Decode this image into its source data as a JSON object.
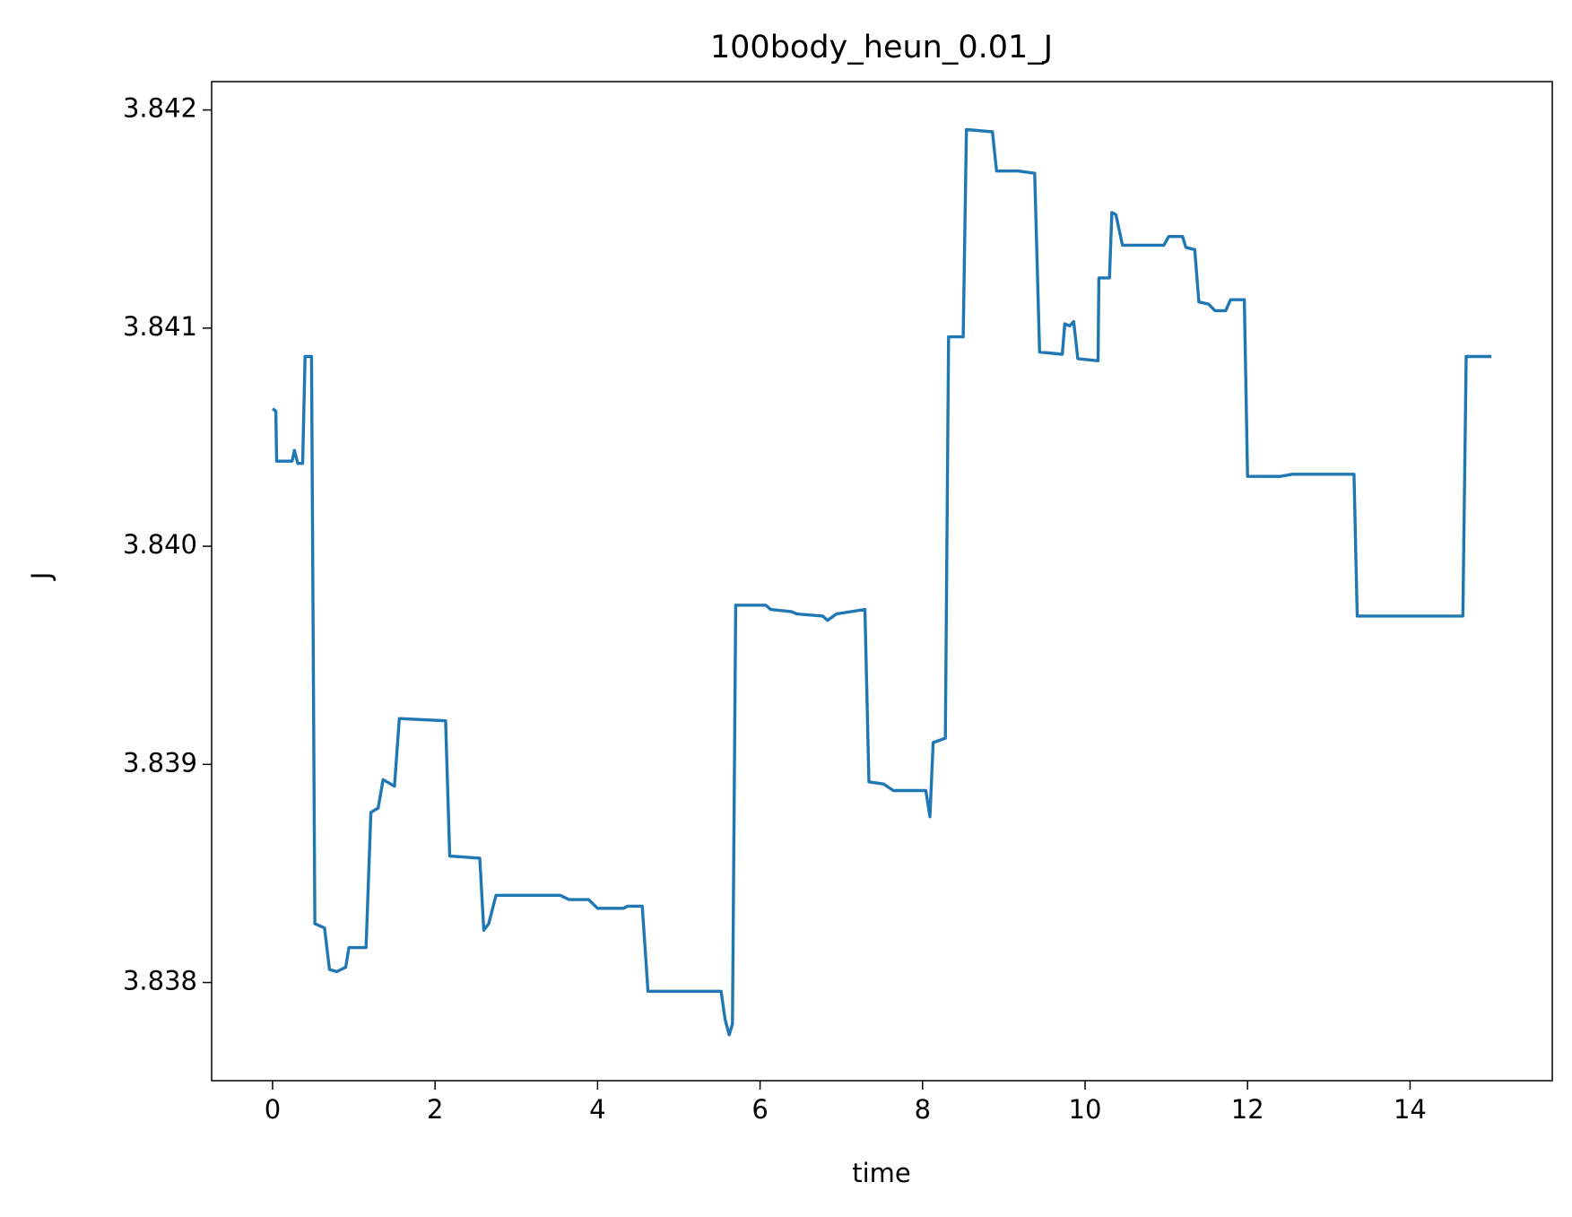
{
  "chart_data": {
    "type": "line",
    "title": "100body_heun_0.01_J",
    "x_label": "time",
    "y_label": "J",
    "xlim": [
      -0.75,
      15.75
    ],
    "ylim": [
      3.83755,
      3.84213
    ],
    "xticks": [
      0,
      2,
      4,
      6,
      8,
      10,
      12,
      14
    ],
    "yticks": [
      3.838,
      3.839,
      {
        "value": 3.84,
        "label": "3.840"
      },
      3.841,
      3.842
    ],
    "series": [
      {
        "name": "J",
        "color": "#1f77b4",
        "x": [
          0,
          0.04,
          0.05,
          0.24,
          0.27,
          0.31,
          0.37,
          0.4,
          0.48,
          0.52,
          0.64,
          0.7,
          0.79,
          0.9,
          0.94,
          1.15,
          1.21,
          1.3,
          1.36,
          1.5,
          1.56,
          2.13,
          2.18,
          2.55,
          2.6,
          2.66,
          2.75,
          3.54,
          3.65,
          3.89,
          4.0,
          4.32,
          4.37,
          4.55,
          4.62,
          5.01,
          5.52,
          5.57,
          5.62,
          5.66,
          5.7,
          6.07,
          6.13,
          6.39,
          6.45,
          6.77,
          6.83,
          6.94,
          7.29,
          7.34,
          7.52,
          7.64,
          8.04,
          8.09,
          8.13,
          8.28,
          8.32,
          8.5,
          8.54,
          8.86,
          8.91,
          9.18,
          9.38,
          9.44,
          9.72,
          9.75,
          9.81,
          9.86,
          9.91,
          10.16,
          10.17,
          10.3,
          10.33,
          10.38,
          10.46,
          10.97,
          11.03,
          11.2,
          11.24,
          11.35,
          11.4,
          11.52,
          11.6,
          11.73,
          11.79,
          11.96,
          12.0,
          12.4,
          12.55,
          13.31,
          13.35,
          14.4,
          14.65,
          14.69,
          15.0
        ],
        "values": [
          3.84063,
          3.84062,
          3.84039,
          3.84039,
          3.84044,
          3.84038,
          3.84038,
          3.84087,
          3.84087,
          3.83827,
          3.83825,
          3.83806,
          3.83805,
          3.83807,
          3.83816,
          3.83816,
          3.83878,
          3.8388,
          3.83893,
          3.8389,
          3.83921,
          3.8392,
          3.83858,
          3.83857,
          3.83824,
          3.83827,
          3.8384,
          3.8384,
          3.83838,
          3.83838,
          3.83834,
          3.83834,
          3.83835,
          3.83835,
          3.83796,
          3.83796,
          3.83796,
          3.83783,
          3.83776,
          3.83781,
          3.83973,
          3.83973,
          3.83971,
          3.8397,
          3.83969,
          3.83968,
          3.83966,
          3.83969,
          3.83971,
          3.83892,
          3.83891,
          3.83888,
          3.83888,
          3.83876,
          3.8391,
          3.83912,
          3.84096,
          3.84096,
          3.84191,
          3.8419,
          3.84172,
          3.84172,
          3.84171,
          3.84089,
          3.84088,
          3.84102,
          3.84101,
          3.84103,
          3.84086,
          3.84085,
          3.84123,
          3.84123,
          3.84153,
          3.84152,
          3.84138,
          3.84138,
          3.84142,
          3.84142,
          3.84137,
          3.84136,
          3.84112,
          3.84111,
          3.84108,
          3.84108,
          3.84113,
          3.84113,
          3.84032,
          3.84032,
          3.84033,
          3.84033,
          3.83968,
          3.83968,
          3.83968,
          3.84087,
          3.84087
        ]
      }
    ]
  }
}
